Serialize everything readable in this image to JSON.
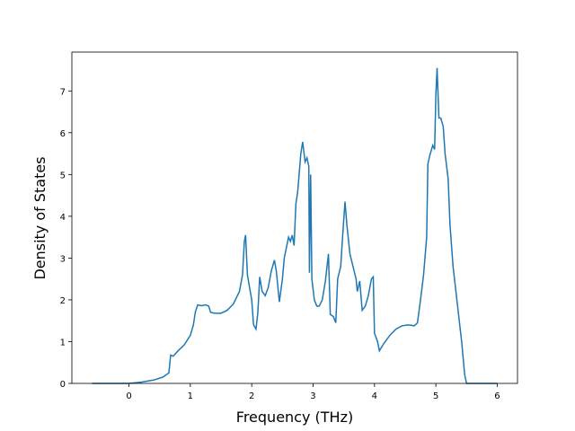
{
  "chart_data": {
    "type": "line",
    "x_label": "Frequency (THz)",
    "y_label": "Density of States",
    "xlim": [
      -0.93,
      6.33
    ],
    "ylim": [
      0,
      7.93
    ],
    "xticks": [
      0,
      1,
      2,
      3,
      4,
      5,
      6
    ],
    "yticks": [
      0,
      1,
      2,
      3,
      4,
      5,
      6,
      7
    ],
    "series": [
      {
        "color": "#1f77b4",
        "x": [
          -0.6,
          0,
          0.2,
          0.4,
          0.55,
          0.65,
          0.68,
          0.72,
          0.8,
          0.9,
          1.0,
          1.05,
          1.08,
          1.12,
          1.18,
          1.25,
          1.3,
          1.33,
          1.4,
          1.5,
          1.6,
          1.7,
          1.8,
          1.85,
          1.88,
          1.9,
          1.93,
          1.97,
          2.0,
          2.03,
          2.07,
          2.1,
          2.13,
          2.17,
          2.22,
          2.27,
          2.32,
          2.37,
          2.4,
          2.45,
          2.5,
          2.53,
          2.6,
          2.63,
          2.66,
          2.69,
          2.72,
          2.75,
          2.8,
          2.83,
          2.87,
          2.9,
          2.93,
          2.94,
          2.96,
          2.98,
          3.02,
          3.06,
          3.1,
          3.15,
          3.2,
          3.25,
          3.28,
          3.33,
          3.37,
          3.4,
          3.45,
          3.48,
          3.52,
          3.55,
          3.6,
          3.65,
          3.7,
          3.72,
          3.76,
          3.8,
          3.85,
          3.9,
          3.95,
          3.98,
          4.0,
          4.05,
          4.08,
          4.15,
          4.25,
          4.35,
          4.45,
          4.55,
          4.65,
          4.7,
          4.75,
          4.8,
          4.85,
          4.87,
          4.9,
          4.95,
          4.98,
          5.0,
          5.02,
          5.05,
          5.08,
          5.12,
          5.15,
          5.2,
          5.23,
          5.28,
          5.35,
          5.42,
          5.47,
          5.5,
          6.0
        ],
        "values": [
          0,
          0,
          0.03,
          0.08,
          0.15,
          0.25,
          0.68,
          0.65,
          0.78,
          0.92,
          1.15,
          1.4,
          1.7,
          1.88,
          1.86,
          1.88,
          1.85,
          1.7,
          1.68,
          1.68,
          1.75,
          1.9,
          2.2,
          2.6,
          3.4,
          3.55,
          2.6,
          2.25,
          2.0,
          1.4,
          1.3,
          1.7,
          2.55,
          2.2,
          2.1,
          2.3,
          2.7,
          2.95,
          2.7,
          1.95,
          2.5,
          3.0,
          3.5,
          3.4,
          3.55,
          3.3,
          4.3,
          4.6,
          5.5,
          5.78,
          5.3,
          5.4,
          5.2,
          2.65,
          5.0,
          2.5,
          2.0,
          1.85,
          1.85,
          2.0,
          2.45,
          3.1,
          1.65,
          1.6,
          1.45,
          2.5,
          2.8,
          3.5,
          4.35,
          3.8,
          3.1,
          2.8,
          2.5,
          2.2,
          2.45,
          1.75,
          1.85,
          2.1,
          2.5,
          2.55,
          1.2,
          1.0,
          0.78,
          0.95,
          1.15,
          1.3,
          1.38,
          1.4,
          1.38,
          1.45,
          2.0,
          2.6,
          3.5,
          5.25,
          5.45,
          5.7,
          5.6,
          6.9,
          7.55,
          6.35,
          6.35,
          6.15,
          5.5,
          4.9,
          3.8,
          2.8,
          1.9,
          1.0,
          0.2,
          0,
          0
        ]
      }
    ]
  }
}
